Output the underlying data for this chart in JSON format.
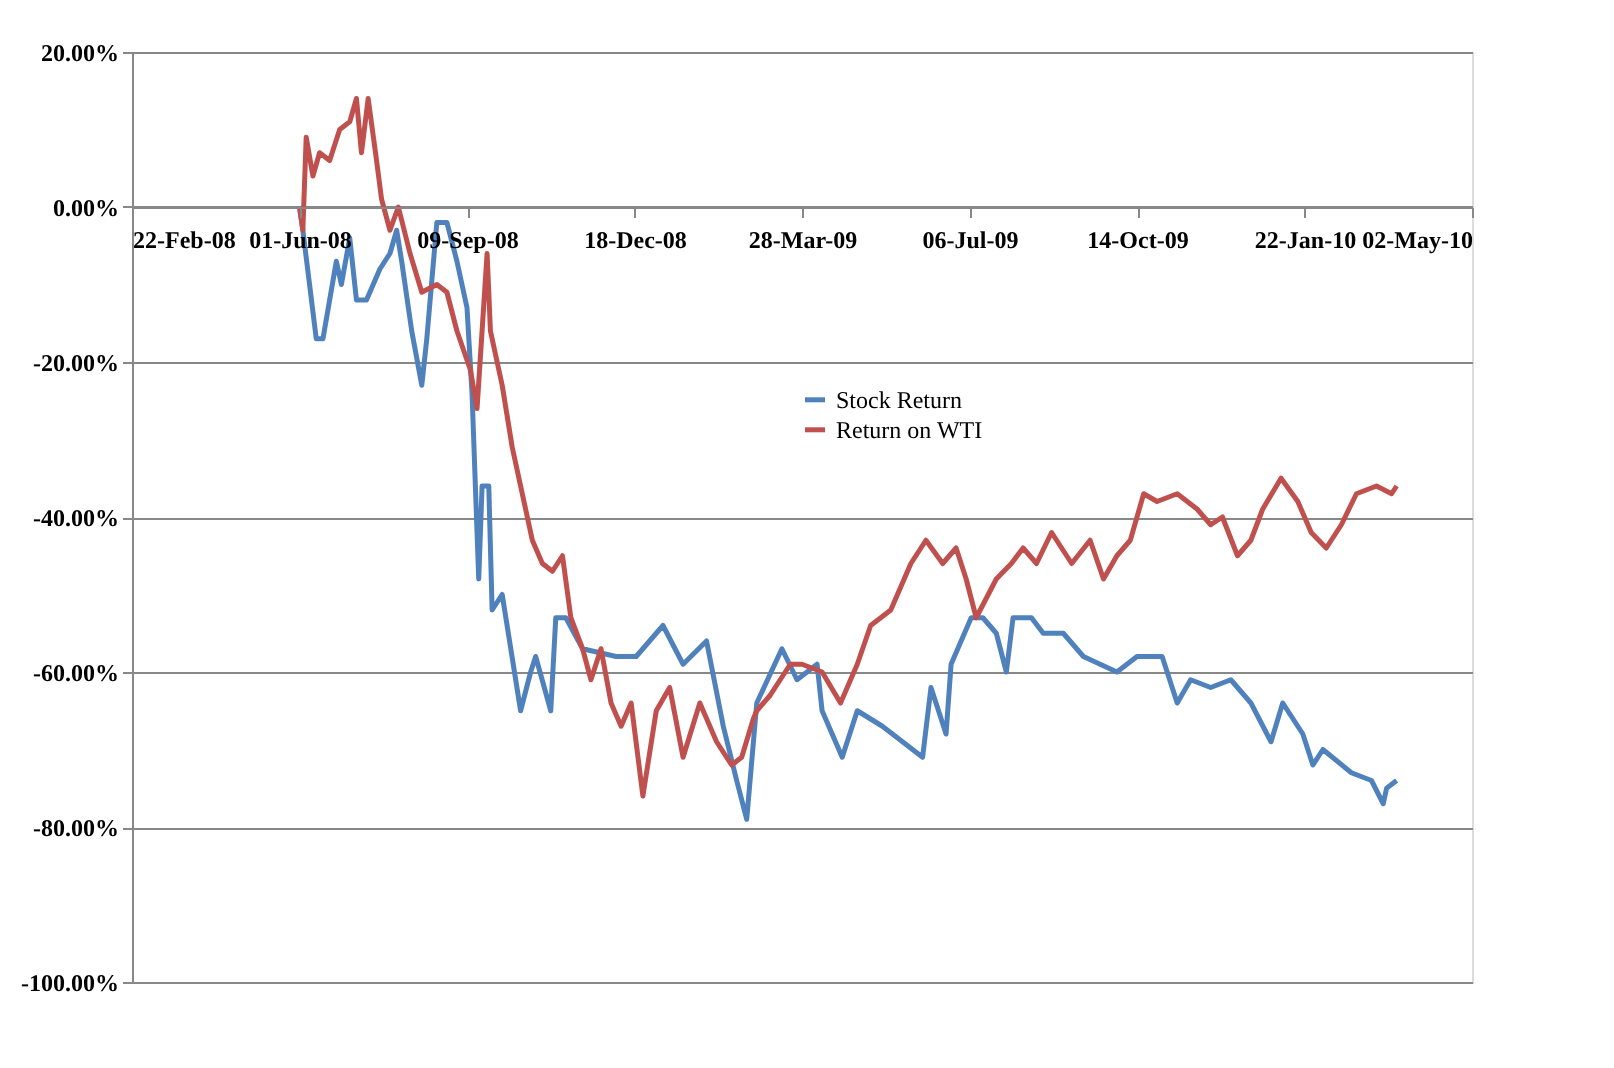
{
  "chart_data": {
    "type": "line",
    "xlim": [
      "2008-02-22",
      "2010-05-02"
    ],
    "xticks": [
      {
        "value": "2008-02-22",
        "label": "22-Feb-08"
      },
      {
        "value": "2008-06-01",
        "label": "01-Jun-08"
      },
      {
        "value": "2008-09-09",
        "label": "09-Sep-08"
      },
      {
        "value": "2008-12-18",
        "label": "18-Dec-08"
      },
      {
        "value": "2009-03-28",
        "label": "28-Mar-09"
      },
      {
        "value": "2009-07-06",
        "label": "06-Jul-09"
      },
      {
        "value": "2009-10-14",
        "label": "14-Oct-09"
      },
      {
        "value": "2010-01-22",
        "label": "22-Jan-10"
      },
      {
        "value": "2010-05-02",
        "label": "02-May-10"
      }
    ],
    "ylim": [
      -100,
      20
    ],
    "yticks": [
      {
        "value": -100,
        "label": "-100.00%"
      },
      {
        "value": -80,
        "label": "-80.00%"
      },
      {
        "value": -60,
        "label": "-60.00%"
      },
      {
        "value": -40,
        "label": "-40.00%"
      },
      {
        "value": -20,
        "label": "-20.00%"
      },
      {
        "value": 0,
        "label": "0.00%"
      },
      {
        "value": 20,
        "label": "20.00%"
      }
    ],
    "grid": "y",
    "legend": "center",
    "line_style": "solid",
    "series": [
      {
        "name": "Stock Return",
        "color": "#4f81bd",
        "x": [
          "2008-06-01",
          "2008-06-03",
          "2008-06-11",
          "2008-06-15",
          "2008-06-23",
          "2008-06-26",
          "2008-07-01",
          "2008-07-05",
          "2008-07-11",
          "2008-07-19",
          "2008-07-25",
          "2008-07-29",
          "2008-08-01",
          "2008-08-07",
          "2008-08-13",
          "2008-08-16",
          "2008-08-22",
          "2008-08-28",
          "2008-09-03",
          "2008-09-09",
          "2008-09-12",
          "2008-09-16",
          "2008-09-18",
          "2008-09-22",
          "2008-09-24",
          "2008-09-30",
          "2008-10-11",
          "2008-10-17",
          "2008-10-20",
          "2008-10-29",
          "2008-11-01",
          "2008-11-07",
          "2008-11-17",
          "2008-12-07",
          "2008-12-19",
          "2009-01-04",
          "2009-01-16",
          "2009-01-30",
          "2009-02-09",
          "2009-02-17",
          "2009-02-23",
          "2009-03-01",
          "2009-03-16",
          "2009-03-25",
          "2009-04-06",
          "2009-04-09",
          "2009-04-21",
          "2009-04-30",
          "2009-05-15",
          "2009-05-27",
          "2009-06-08",
          "2009-06-13",
          "2009-06-22",
          "2009-06-25",
          "2009-07-07",
          "2009-07-14",
          "2009-07-22",
          "2009-07-28",
          "2009-08-01",
          "2009-08-12",
          "2009-08-19",
          "2009-08-31",
          "2009-09-12",
          "2009-10-02",
          "2009-10-14",
          "2009-10-29",
          "2009-11-07",
          "2009-11-15",
          "2009-11-27",
          "2009-12-09",
          "2009-12-21",
          "2010-01-02",
          "2010-01-09",
          "2010-01-21",
          "2010-01-27",
          "2010-02-02",
          "2010-02-19",
          "2010-03-03",
          "2010-03-10",
          "2010-03-12",
          "2010-03-18"
        ],
        "values": [
          0,
          -3,
          -17,
          -17,
          -7,
          -10,
          -4,
          -12,
          -12,
          -8,
          -6,
          -3,
          -7,
          -16,
          -23,
          -17,
          -2,
          -2,
          -7,
          -13,
          -24,
          -48,
          -36,
          -36,
          -52,
          -50,
          -65,
          -60,
          -58,
          -65,
          -53,
          -53,
          -57,
          -58,
          -58,
          -54,
          -59,
          -56,
          -67,
          -74,
          -79,
          -64,
          -57,
          -61,
          -59,
          -65,
          -71,
          -65,
          -67,
          -69,
          -71,
          -62,
          -68,
          -59,
          -53,
          -53,
          -55,
          -60,
          -53,
          -53,
          -55,
          -55,
          -58,
          -60,
          -58,
          -58,
          -64,
          -61,
          -62,
          -61,
          -64,
          -69,
          -64,
          -68,
          -72,
          -70,
          -73,
          -74,
          -77,
          -75,
          -74
        ]
      },
      {
        "name": "Return on WTI",
        "color": "#c0504d",
        "x": [
          "2008-06-01",
          "2008-06-03",
          "2008-06-05",
          "2008-06-09",
          "2008-06-13",
          "2008-06-19",
          "2008-06-25",
          "2008-07-01",
          "2008-07-05",
          "2008-07-08",
          "2008-07-12",
          "2008-07-17",
          "2008-07-20",
          "2008-07-25",
          "2008-07-30",
          "2008-08-06",
          "2008-08-13",
          "2008-08-22",
          "2008-08-28",
          "2008-09-03",
          "2008-09-11",
          "2008-09-15",
          "2008-09-21",
          "2008-09-23",
          "2008-09-30",
          "2008-10-06",
          "2008-10-12",
          "2008-10-18",
          "2008-10-24",
          "2008-10-30",
          "2008-11-05",
          "2008-11-10",
          "2008-11-17",
          "2008-11-22",
          "2008-11-28",
          "2008-12-04",
          "2008-12-10",
          "2008-12-16",
          "2008-12-23",
          "2008-12-31",
          "2009-01-08",
          "2009-01-16",
          "2009-01-26",
          "2009-02-05",
          "2009-02-14",
          "2009-02-20",
          "2009-02-27",
          "2009-03-01",
          "2009-03-09",
          "2009-03-21",
          "2009-03-28",
          "2009-04-09",
          "2009-04-20",
          "2009-04-30",
          "2009-05-08",
          "2009-05-20",
          "2009-06-01",
          "2009-06-10",
          "2009-06-20",
          "2009-06-28",
          "2009-07-04",
          "2009-07-10",
          "2009-07-22",
          "2009-07-31",
          "2009-08-07",
          "2009-08-15",
          "2009-08-24",
          "2009-09-05",
          "2009-09-16",
          "2009-09-24",
          "2009-10-02",
          "2009-10-10",
          "2009-10-18",
          "2009-10-26",
          "2009-11-07",
          "2009-11-19",
          "2009-11-27",
          "2009-12-04",
          "2009-12-13",
          "2009-12-21",
          "2009-12-28",
          "2010-01-08",
          "2010-01-18",
          "2010-01-26",
          "2010-02-04",
          "2010-02-13",
          "2010-02-22",
          "2010-03-06",
          "2010-03-15",
          "2010-03-18"
        ],
        "values": [
          0,
          -3,
          9,
          4,
          7,
          6,
          10,
          11,
          14,
          7,
          14,
          6,
          1,
          -3,
          0,
          -6,
          -11,
          -10,
          -11,
          -16,
          -21,
          -26,
          -6,
          -16,
          -23,
          -31,
          -37,
          -43,
          -46,
          -47,
          -45,
          -53,
          -57,
          -61,
          -57,
          -64,
          -67,
          -64,
          -76,
          -65,
          -62,
          -71,
          -64,
          -69,
          -72,
          -71,
          -66,
          -65,
          -63,
          -59,
          -59,
          -60,
          -64,
          -59,
          -54,
          -52,
          -46,
          -43,
          -46,
          -44,
          -48,
          -53,
          -48,
          -46,
          -44,
          -46,
          -42,
          -46,
          -43,
          -48,
          -45,
          -43,
          -37,
          -38,
          -37,
          -39,
          -41,
          -40,
          -45,
          -43,
          -39,
          -35,
          -38,
          -42,
          -44,
          -41,
          -37,
          -36,
          -37,
          -36
        ]
      }
    ]
  }
}
